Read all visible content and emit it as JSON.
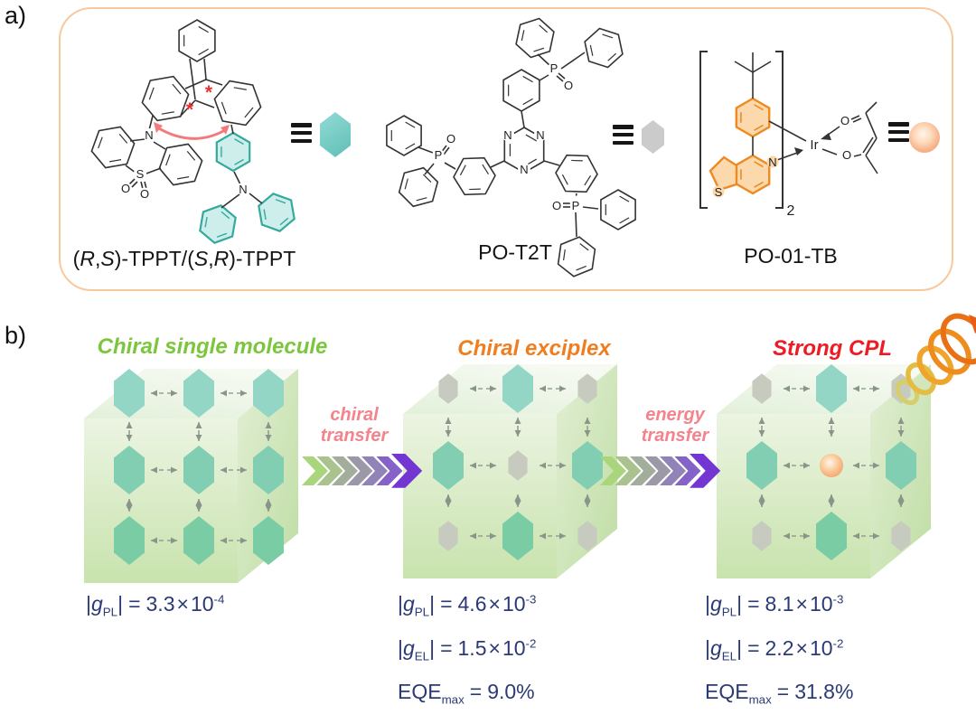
{
  "figure": {
    "panel_a_label": "a)",
    "panel_b_label": "b)"
  },
  "panel_a": {
    "molecules": [
      {
        "name_full": "(R,S)-TPPT/(S,R)-TPPT",
        "name_parts": [
          "(",
          "R",
          ",",
          "S",
          ")-TPPT/(",
          "S",
          ",",
          "R",
          ")-TPPT"
        ],
        "equiv": "≡",
        "symbol": "teal-hexagon",
        "atoms": {
          "n1": "N",
          "s": "S",
          "o1": "O",
          "o2": "O",
          "n2": "N",
          "star1": "*",
          "star2": "*"
        }
      },
      {
        "name": "PO-T2T",
        "equiv": "≡",
        "symbol": "gray-hexagon",
        "atoms": {
          "n1": "N",
          "n2": "N",
          "n3": "N",
          "p1": "P",
          "o1": "O",
          "p2": "P",
          "o2": "O",
          "p3": "P",
          "o3": "O"
        }
      },
      {
        "name": "PO-01-TB",
        "equiv": "≡",
        "symbol": "orange-sphere",
        "atoms": {
          "s": "S",
          "n": "N",
          "ir": "Ir",
          "o1": "O",
          "o2": "O",
          "repeat": "2"
        }
      }
    ]
  },
  "panel_b": {
    "stages": [
      {
        "title": "Chiral single molecule",
        "title_color": "#7cc63e",
        "grid": [
          [
            "teal",
            "teal",
            "teal"
          ],
          [
            "teal",
            "teal",
            "teal"
          ],
          [
            "teal",
            "teal",
            "teal"
          ]
        ],
        "metrics": [
          {
            "sym": "g",
            "sub": "PL",
            "value": "3.3",
            "exp": "-4"
          }
        ]
      },
      {
        "title": "Chiral exciplex",
        "title_color": "#f07e20",
        "grid": [
          [
            "gray",
            "teal",
            "gray"
          ],
          [
            "teal",
            "gray",
            "teal"
          ],
          [
            "gray",
            "teal",
            "gray"
          ]
        ],
        "metrics": [
          {
            "sym": "g",
            "sub": "PL",
            "value": "4.6",
            "exp": "-3"
          },
          {
            "sym": "g",
            "sub": "EL",
            "value": "1.5",
            "exp": "-2"
          }
        ],
        "eqe": {
          "label": "EQE",
          "sub": "max",
          "value": "9.0%"
        }
      },
      {
        "title": "Strong CPL",
        "title_color": "#ed1c24",
        "grid": [
          [
            "gray",
            "teal",
            "gray"
          ],
          [
            "teal",
            "sphere",
            "teal"
          ],
          [
            "gray",
            "teal",
            "gray"
          ]
        ],
        "metrics": [
          {
            "sym": "g",
            "sub": "PL",
            "value": "8.1",
            "exp": "-3"
          },
          {
            "sym": "g",
            "sub": "EL",
            "value": "2.2",
            "exp": "-2"
          }
        ],
        "eqe": {
          "label": "EQE",
          "sub": "max",
          "value": "31.8%"
        }
      }
    ],
    "arrows": [
      {
        "line1": "chiral",
        "line2": "transfer"
      },
      {
        "line1": "energy",
        "line2": "transfer"
      }
    ],
    "format": {
      "bar": "|",
      "eq": "=",
      "times": "×",
      "base": "10"
    },
    "colors": {
      "chevrons": [
        "#a9d57d",
        "#a9c28e",
        "#a3ad9c",
        "#9c98a8",
        "#9182b8",
        "#8462c8",
        "#7436d2"
      ],
      "teal_hexagon": "#81ceb2",
      "gray_hexagon": "#c6cabf",
      "dopant_sphere": "#f5a979",
      "metric_text": "#2b3a74",
      "transfer_label": "#f4838b"
    }
  }
}
